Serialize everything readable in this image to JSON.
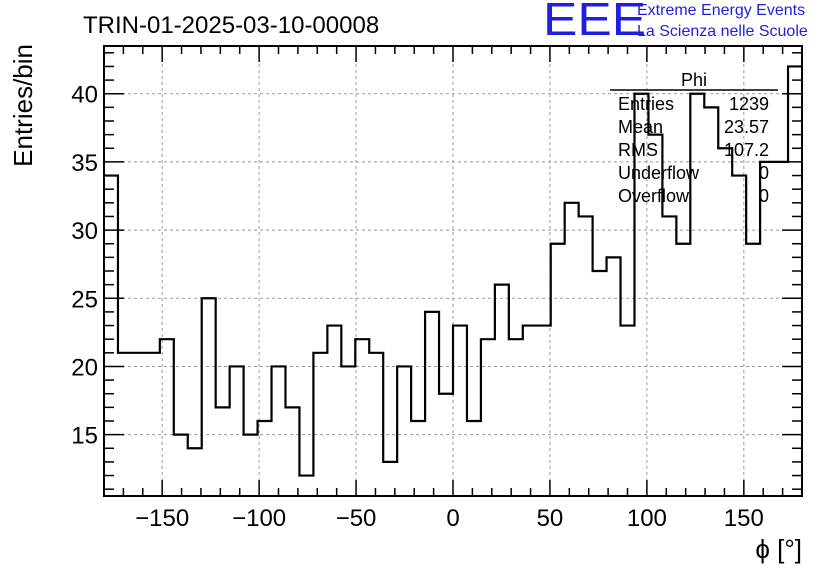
{
  "header": {
    "run_title": "TRIN-01-2025-03-10-00008"
  },
  "logo": {
    "mark": "EEE",
    "line1": "Extreme Energy Events",
    "line2": "La Scienza nelle Scuole",
    "color": "#1f1fe0"
  },
  "stats": {
    "title": "Phi",
    "rows": [
      {
        "label": "Entries",
        "value": "1239"
      },
      {
        "label": "Mean",
        "value": "23.57"
      },
      {
        "label": "RMS",
        "value": "107.2"
      },
      {
        "label": "Underflow",
        "value": "0"
      },
      {
        "label": "Overflow",
        "value": "0"
      }
    ]
  },
  "chart_data": {
    "type": "histogram",
    "title": "TRIN-01-2025-03-10-00008",
    "xlabel": "ϕ [°]",
    "ylabel": "Entries/bin",
    "xlim": [
      -180,
      180
    ],
    "ylim": [
      10.5,
      43.5
    ],
    "bin_width": 7.2,
    "x_ticks": [
      -150,
      -100,
      -50,
      0,
      50,
      100,
      150
    ],
    "x_tick_labels": [
      "−150",
      "−100",
      "−50",
      "0",
      "50",
      "100",
      "150"
    ],
    "y_ticks": [
      15,
      20,
      25,
      30,
      35,
      40
    ],
    "y_tick_labels": [
      "15",
      "20",
      "25",
      "30",
      "35",
      "40"
    ],
    "grid": true,
    "line_color": "#000000",
    "values": [
      34,
      21,
      21,
      21,
      22,
      15,
      14,
      25,
      17,
      20,
      15,
      16,
      20,
      17,
      12,
      21,
      23,
      20,
      22,
      21,
      13,
      20,
      16,
      24,
      18,
      23,
      16,
      22,
      26,
      22,
      23,
      23,
      29,
      32,
      31,
      27,
      28,
      23,
      40,
      37,
      31,
      29,
      40,
      39,
      36,
      34,
      29,
      35,
      35,
      42
    ]
  }
}
